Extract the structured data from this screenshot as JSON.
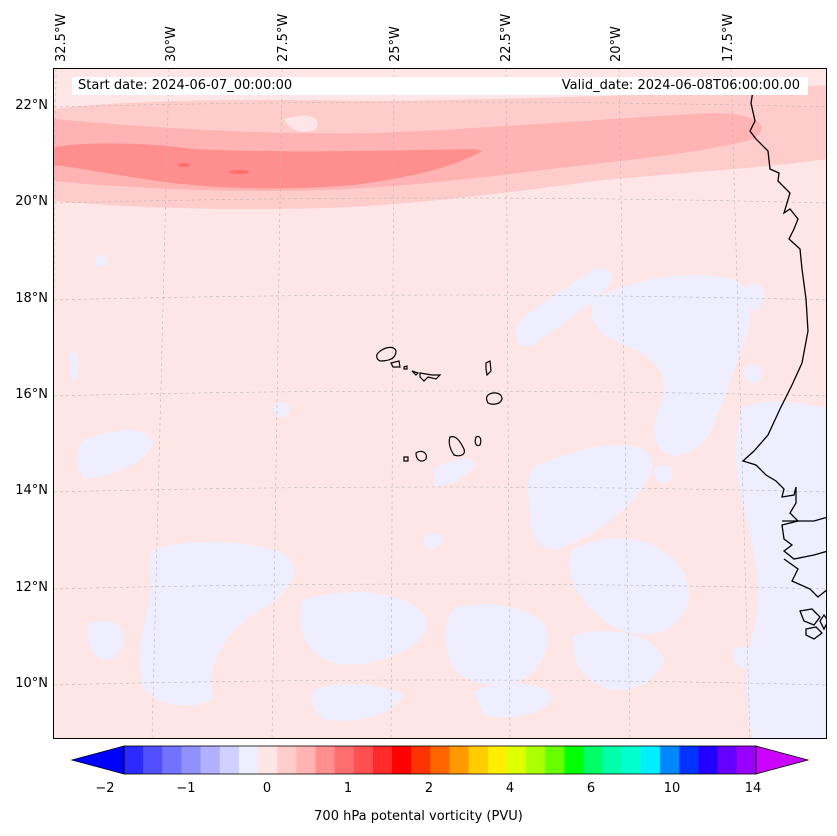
{
  "map": {
    "start_date": "Start date: 2024-06-07_00:00:00",
    "valid_date": "Valid_date: 2024-06-08T06:00:00.00",
    "longitude_labels": [
      "32.5°W",
      "30°W",
      "27.5°W",
      "25°W",
      "22.5°W",
      "20°W",
      "17.5°W"
    ],
    "latitude_labels": [
      "22°N",
      "20°N",
      "18°N",
      "16°N",
      "14°N",
      "12°N",
      "10°N"
    ],
    "colors": {
      "background_field": "#ffe6e6",
      "negative_field": "#eeeeff",
      "band_light": "#ffcccc",
      "band_mid": "#ffb3b3",
      "band_core": "#ff8f8f",
      "coastline": "#000000"
    }
  },
  "colorbar": {
    "label": "700 hPa potental vorticity (PVU)",
    "tick_labels": [
      "−2",
      "−1",
      "0",
      "1",
      "2",
      "4",
      "6",
      "10",
      "14"
    ],
    "colors": [
      "#0000ff",
      "#2a2aff",
      "#5050ff",
      "#7272ff",
      "#9090ff",
      "#b0b0ff",
      "#d0d0ff",
      "#eeeeff",
      "#ffe6e6",
      "#ffcccc",
      "#ffb3b3",
      "#ff8f8f",
      "#ff6e6e",
      "#ff5050",
      "#ff2a2a",
      "#ff0000",
      "#ff3300",
      "#ff6600",
      "#ff9900",
      "#ffcc00",
      "#ffee00",
      "#ddff00",
      "#aaff00",
      "#66ff00",
      "#00ff00",
      "#00ff66",
      "#00ffaa",
      "#00ffcc",
      "#00eeff",
      "#0088ff",
      "#0033ff",
      "#2200ff",
      "#6600ff",
      "#9900ff",
      "#cc00ff"
    ]
  }
}
